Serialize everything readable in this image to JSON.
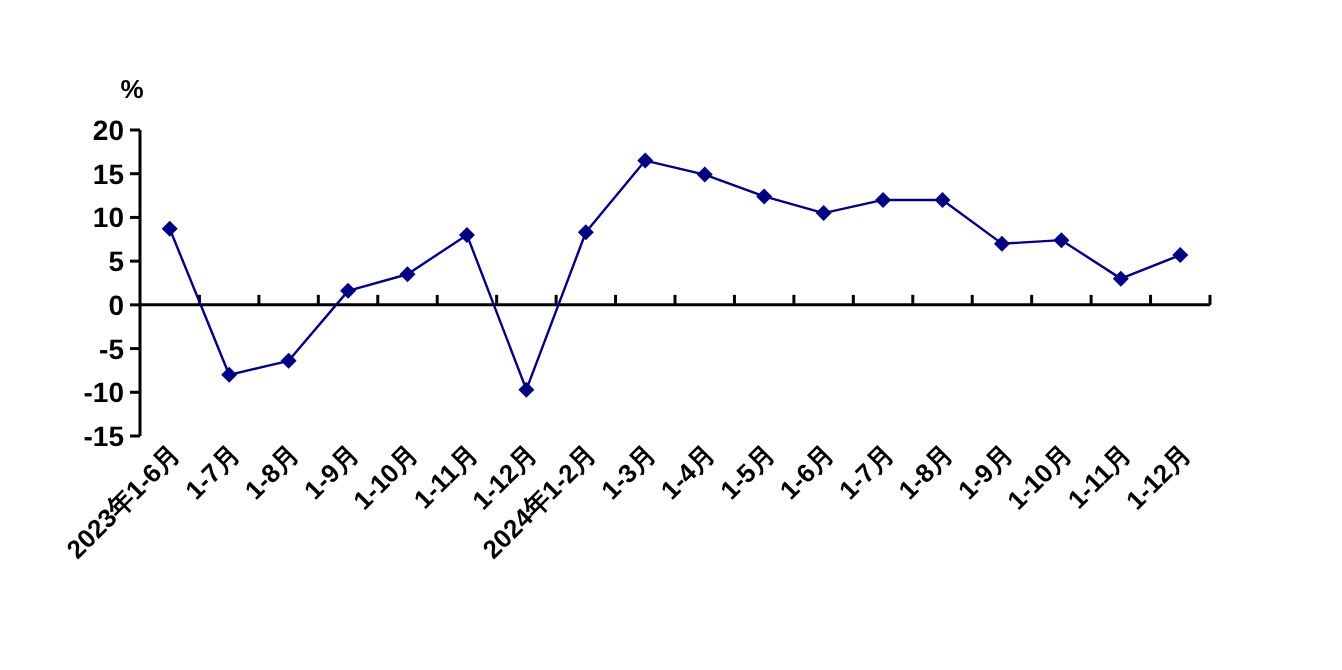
{
  "chart_data": {
    "type": "line",
    "ylabel": "%",
    "categories": [
      "2023年1-6月",
      "1-7月",
      "1-8月",
      "1-9月",
      "1-10月",
      "1-11月",
      "1-12月",
      "2024年1-2月",
      "1-3月",
      "1-4月",
      "1-5月",
      "1-6月",
      "1-7月",
      "1-8月",
      "1-9月",
      "1-10月",
      "1-11月",
      "1-12月"
    ],
    "values": [
      8.7,
      -8.0,
      -6.4,
      1.6,
      3.5,
      8.0,
      -9.7,
      8.3,
      16.5,
      14.9,
      12.4,
      10.5,
      12.0,
      12.0,
      7.0,
      7.4,
      3.0,
      5.7
    ],
    "color": "#000080",
    "marker": "diamond",
    "line_style": "solid",
    "ylim": [
      -15,
      20
    ],
    "yticks": [
      -15,
      -10,
      -5,
      0,
      5,
      10,
      15,
      20
    ]
  }
}
